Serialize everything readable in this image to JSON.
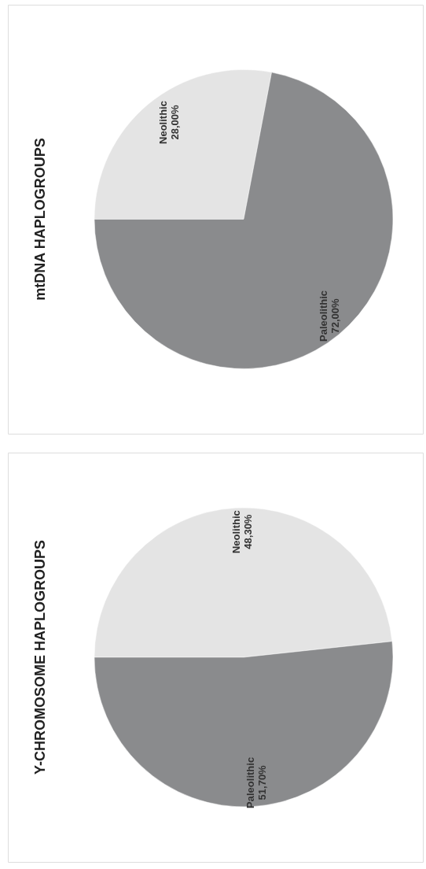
{
  "chart_data": [
    {
      "type": "pie",
      "title": "mtDNA HAPLOGROUPS",
      "categories": [
        "Neolithic",
        "Paleolithic"
      ],
      "values": [
        28.0,
        72.0
      ],
      "colors": [
        "#e4e4e4",
        "#8a8b8d"
      ],
      "value_labels": [
        "28,00%",
        "72,00%"
      ],
      "legend": false
    },
    {
      "type": "pie",
      "title": "Y-CHROMOSOME HAPLOGROUPS",
      "categories": [
        "Neolithic",
        "Paleolithic"
      ],
      "values": [
        48.3,
        51.7
      ],
      "colors": [
        "#e4e4e4",
        "#8a8b8d"
      ],
      "value_labels": [
        "48,30%",
        "51,70%"
      ],
      "legend": false
    }
  ]
}
